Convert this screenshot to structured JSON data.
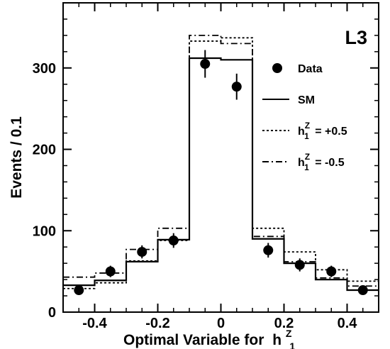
{
  "chart_data": {
    "type": "histogram",
    "experiment_label": "L3",
    "xlabel": "Optimal Variable for",
    "xlabel_symbol": {
      "base": "h",
      "sup": "Z",
      "sub": "1"
    },
    "ylabel": "Events / 0.1",
    "xlim": [
      -0.5,
      0.5
    ],
    "ylim": [
      0,
      380
    ],
    "x_ticks": [
      -0.4,
      -0.2,
      0,
      0.2,
      0.4
    ],
    "x_tick_labels": [
      "-0.4",
      "-0.2",
      "0",
      "0.2",
      "0.4"
    ],
    "y_ticks": [
      0,
      100,
      200,
      300
    ],
    "y_tick_labels": [
      "0",
      "100",
      "200",
      "300"
    ],
    "bin_edges": [
      -0.5,
      -0.4,
      -0.3,
      -0.2,
      -0.1,
      0.0,
      0.1,
      0.2,
      0.3,
      0.4,
      0.5
    ],
    "data": {
      "name": "Data",
      "x": [
        -0.45,
        -0.35,
        -0.25,
        -0.15,
        -0.05,
        0.05,
        0.15,
        0.25,
        0.35,
        0.45
      ],
      "y": [
        27,
        50,
        74,
        88,
        305,
        277,
        76,
        58,
        50,
        27
      ],
      "err": [
        5,
        7,
        8,
        9,
        17,
        16,
        9,
        8,
        7,
        5
      ]
    },
    "series": [
      {
        "name": "SM",
        "style": "solid",
        "values": [
          33,
          39,
          62,
          89,
          312,
          310,
          90,
          60,
          40,
          27
        ]
      },
      {
        "name": "+0.5",
        "style": "dotted",
        "values": [
          29,
          36,
          63,
          88,
          333,
          337,
          103,
          74,
          52,
          38
        ]
      },
      {
        "name": "-0.5",
        "style": "dashdot",
        "values": [
          43,
          48,
          77,
          103,
          340,
          330,
          93,
          62,
          42,
          32
        ]
      }
    ],
    "legend": {
      "position": "right",
      "items": [
        {
          "kind": "marker",
          "label": "Data"
        },
        {
          "kind": "solid",
          "label": "SM"
        },
        {
          "kind": "dotted",
          "symbol": {
            "base": "h",
            "sup": "Z",
            "sub": "1"
          },
          "value": "=  +0.5"
        },
        {
          "kind": "dashdot",
          "symbol": {
            "base": "h",
            "sup": "Z",
            "sub": "1"
          },
          "value": "=  -0.5"
        }
      ]
    }
  }
}
